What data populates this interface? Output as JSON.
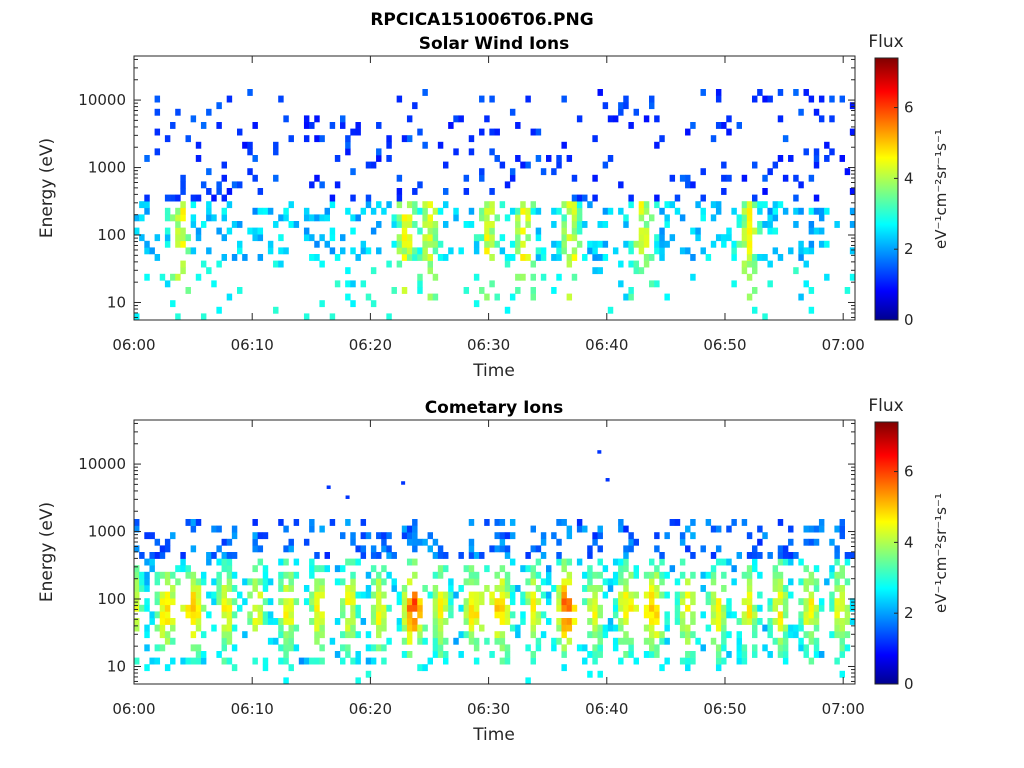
{
  "figure": {
    "filename": "RPCICA151006T06.PNG"
  },
  "chart_data": [
    {
      "type": "heatmap",
      "title": "Solar Wind Ions",
      "xlabel": "Time",
      "ylabel": "Energy (eV)",
      "x_range": [
        "06:00",
        "07:01"
      ],
      "x_ticks": [
        "06:00",
        "06:10",
        "06:20",
        "06:30",
        "06:40",
        "06:50",
        "07:00"
      ],
      "y_scale": "log",
      "y_range": [
        5.5,
        45000
      ],
      "y_ticks": [
        "10",
        "100",
        "1000",
        "10000"
      ],
      "grid": false,
      "colorbar": {
        "title": "Flux",
        "label": "eV⁻¹cm⁻²sr⁻¹s⁻¹",
        "range": [
          0,
          7.4
        ],
        "ticks": [
          "0",
          "2",
          "4",
          "6"
        ],
        "colormap": "jet"
      },
      "structure": {
        "scattered_high_energy_counts_eV": [
          500,
          15000
        ],
        "core_energy_eV": [
          40,
          300
        ],
        "peak_flux": 4.8,
        "peak_times": [
          "06:04",
          "06:23",
          "06:25",
          "06:30",
          "06:33",
          "06:37",
          "06:43",
          "06:52"
        ]
      }
    },
    {
      "type": "heatmap",
      "title": "Cometary Ions",
      "xlabel": "Time",
      "ylabel": "Energy (eV)",
      "x_range": [
        "06:00",
        "07:01"
      ],
      "x_ticks": [
        "06:00",
        "06:10",
        "06:20",
        "06:30",
        "06:40",
        "06:50",
        "07:00"
      ],
      "y_scale": "log",
      "y_range": [
        5.5,
        45000
      ],
      "y_ticks": [
        "10",
        "100",
        "1000",
        "10000"
      ],
      "grid": false,
      "colorbar": {
        "title": "Flux",
        "label": "eV⁻¹cm⁻²sr⁻¹s⁻¹",
        "range": [
          0,
          7.4
        ],
        "ticks": [
          "0",
          "2",
          "4",
          "6"
        ],
        "colormap": "jet"
      },
      "structure": {
        "band_energy_eV": [
          12,
          1500
        ],
        "core_energy_eV": [
          25,
          200
        ],
        "peak_flux": 6.2,
        "burst_period_min": 2.6,
        "peak_times": [
          "06:04",
          "06:24",
          "06:30",
          "06:37",
          "06:43"
        ],
        "isolated_high_energy_points_eV": [
          4500,
          3200,
          5200,
          15000,
          5800
        ]
      }
    }
  ]
}
